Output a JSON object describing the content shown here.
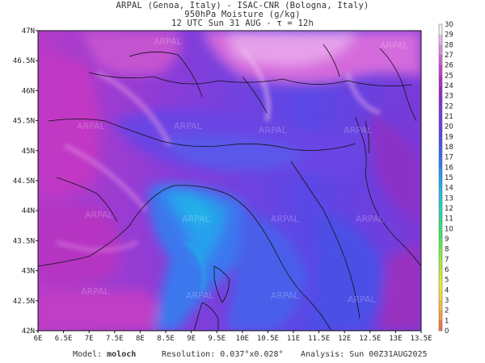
{
  "header": {
    "line1": "ARPAL (Genoa, Italy)  -  ISAC-CNR (Bologna, Italy)",
    "line2": "950hPa Moisture (g/kg)",
    "line3": "12 UTC Sun 31 AUG  -  τ = 12h"
  },
  "map": {
    "lat_ticks": [
      "47N",
      "46.5N",
      "46N",
      "45.5N",
      "45N",
      "44.5N",
      "44N",
      "43.5N",
      "43N",
      "42.5N",
      "42N"
    ],
    "lon_ticks": [
      "6E",
      "6.5E",
      "7E",
      "7.5E",
      "8E",
      "8.5E",
      "9E",
      "9.5E",
      "10E",
      "10.5E",
      "11E",
      "11.5E",
      "12E",
      "12.5E",
      "13E",
      "13.5E"
    ],
    "lat_range": [
      42,
      47
    ],
    "lon_range": [
      6,
      13.5
    ],
    "watermark": "ARPAL"
  },
  "colorbar": {
    "labels": [
      "30",
      "29",
      "28",
      "27",
      "26",
      "25",
      "24",
      "23",
      "22",
      "21",
      "20",
      "19",
      "18",
      "17",
      "16",
      "15",
      "14",
      "13",
      "12",
      "11",
      "10",
      "9",
      "8",
      "7",
      "6",
      "5",
      "4",
      "3",
      "2",
      "1",
      "0"
    ],
    "colors": [
      "#f2f2f2",
      "#e6b3ec",
      "#d98ee0",
      "#cc66d6",
      "#c040c8",
      "#b030c0",
      "#9a28b8",
      "#8a2ec8",
      "#7a36d6",
      "#6a3ee0",
      "#5846e6",
      "#4a52ea",
      "#3c64ee",
      "#3078f0",
      "#2890ee",
      "#22a6ea",
      "#20bce0",
      "#22ccc8",
      "#28d6a8",
      "#30de88",
      "#40e468",
      "#5ce850",
      "#80ec40",
      "#a6ee38",
      "#c8ee34",
      "#e6ec34",
      "#f4d838",
      "#f6bc3c",
      "#f69a40",
      "#f47444"
    ]
  },
  "footer": {
    "model_label": "Model:",
    "model_value": "moloch",
    "resolution_label": "Resolution:",
    "resolution_value": "0.037°x0.028°",
    "analysis_label": "Analysis:",
    "analysis_value": "Sun 00Z31AUG2025"
  }
}
